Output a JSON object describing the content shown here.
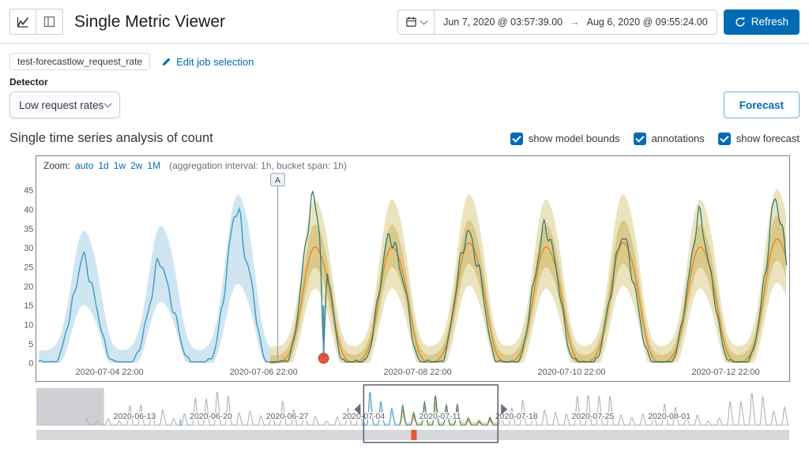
{
  "header": {
    "title": "Single Metric Viewer",
    "datepicker": {
      "start": "Jun 7, 2020 @ 03:57:39.00",
      "arrow": "→",
      "end": "Aug 6, 2020 @ 09:55:24.00"
    },
    "refresh_label": "Refresh"
  },
  "job_bar": {
    "badge": "test-forecastlow_request_rate",
    "edit_link": "Edit job selection"
  },
  "detector": {
    "label": "Detector",
    "selected": "Low request rates",
    "forecast_button": "Forecast"
  },
  "analysis": {
    "title": "Single time series analysis of count",
    "toggles": [
      {
        "label": "show model bounds",
        "checked": true
      },
      {
        "label": "annotations",
        "checked": true
      },
      {
        "label": "show forecast",
        "checked": true
      }
    ]
  },
  "zoom_bar": {
    "prefix": "Zoom:",
    "options": [
      "auto",
      "1d",
      "1w",
      "2w",
      "1M"
    ],
    "suffix": "(aggregation interval: 1h, bucket span: 1h)"
  },
  "chart_data": {
    "type": "line",
    "title": "Single time series analysis of count",
    "main": {
      "ylabel": "count",
      "ylim": [
        0,
        47
      ],
      "y_ticks": [
        0,
        5,
        10,
        15,
        20,
        25,
        30,
        35,
        40,
        45
      ],
      "x_start": "2020-07-04 00:00",
      "domain_hours": 233,
      "bucket_span": "1h",
      "x_ticks": [
        {
          "hour": 22,
          "label": "2020-07-04 22:00"
        },
        {
          "hour": 70,
          "label": "2020-07-06 22:00"
        },
        {
          "hour": 118,
          "label": "2020-07-08 22:00"
        },
        {
          "hour": 166,
          "label": "2020-07-10 22:00"
        },
        {
          "hour": 214,
          "label": "2020-07-12 22:00"
        }
      ],
      "daily_peak_hour": 13.5,
      "actual_day_peaks": [
        26,
        25,
        38,
        41,
        33,
        34,
        35,
        32,
        36,
        40
      ],
      "model_day_peaks": [
        23,
        24,
        30,
        0,
        0,
        0,
        0,
        0,
        0,
        0
      ],
      "forecast_day_peaks": [
        0,
        0,
        0,
        29,
        29,
        30,
        29,
        30,
        29,
        31
      ],
      "forecast_start_hour": 72,
      "annotation": {
        "hour": 74.4,
        "label": "A"
      },
      "anomaly": {
        "hour": 88.7,
        "value": 0,
        "severity": "critical"
      }
    },
    "context": {
      "x_start": "2020-06-04",
      "domain_days": 69,
      "x_ticks": [
        {
          "day": 9,
          "label": "2020-06-13"
        },
        {
          "day": 16,
          "label": "2020-06-20"
        },
        {
          "day": 23,
          "label": "2020-06-27"
        },
        {
          "day": 30,
          "label": "2020-07-04"
        },
        {
          "day": 37,
          "label": "2020-07-11"
        },
        {
          "day": 44,
          "label": "2020-07-18"
        },
        {
          "day": 51,
          "label": "2020-07-25"
        },
        {
          "day": 58,
          "label": "2020-08-01"
        }
      ],
      "selection": {
        "from_day": 30,
        "to_day": 42.3
      },
      "forecast_from_day": 33.3,
      "loading_block_to_day": 6.2,
      "anomaly_day": 34.6,
      "annotation_day": 13.2
    }
  },
  "colors": {
    "primary": "#006BB4",
    "actual_blue": "#4fa0c7",
    "bounds_fill": "#a8d2e7",
    "actual_teal": "#2f7e7b",
    "forecast_line": "#e0912f",
    "forecast_fill": "#d8c87c",
    "forecast_fill_inner": "#cdb55e",
    "anomaly": "#e2492c",
    "annotation_line": "#9aa5b5",
    "axis_text": "#545b66",
    "context_gray": "#a7abb1",
    "swimlane": "#d6d8db",
    "selection_orange": "#e8562e",
    "brush": "#5a6069"
  }
}
